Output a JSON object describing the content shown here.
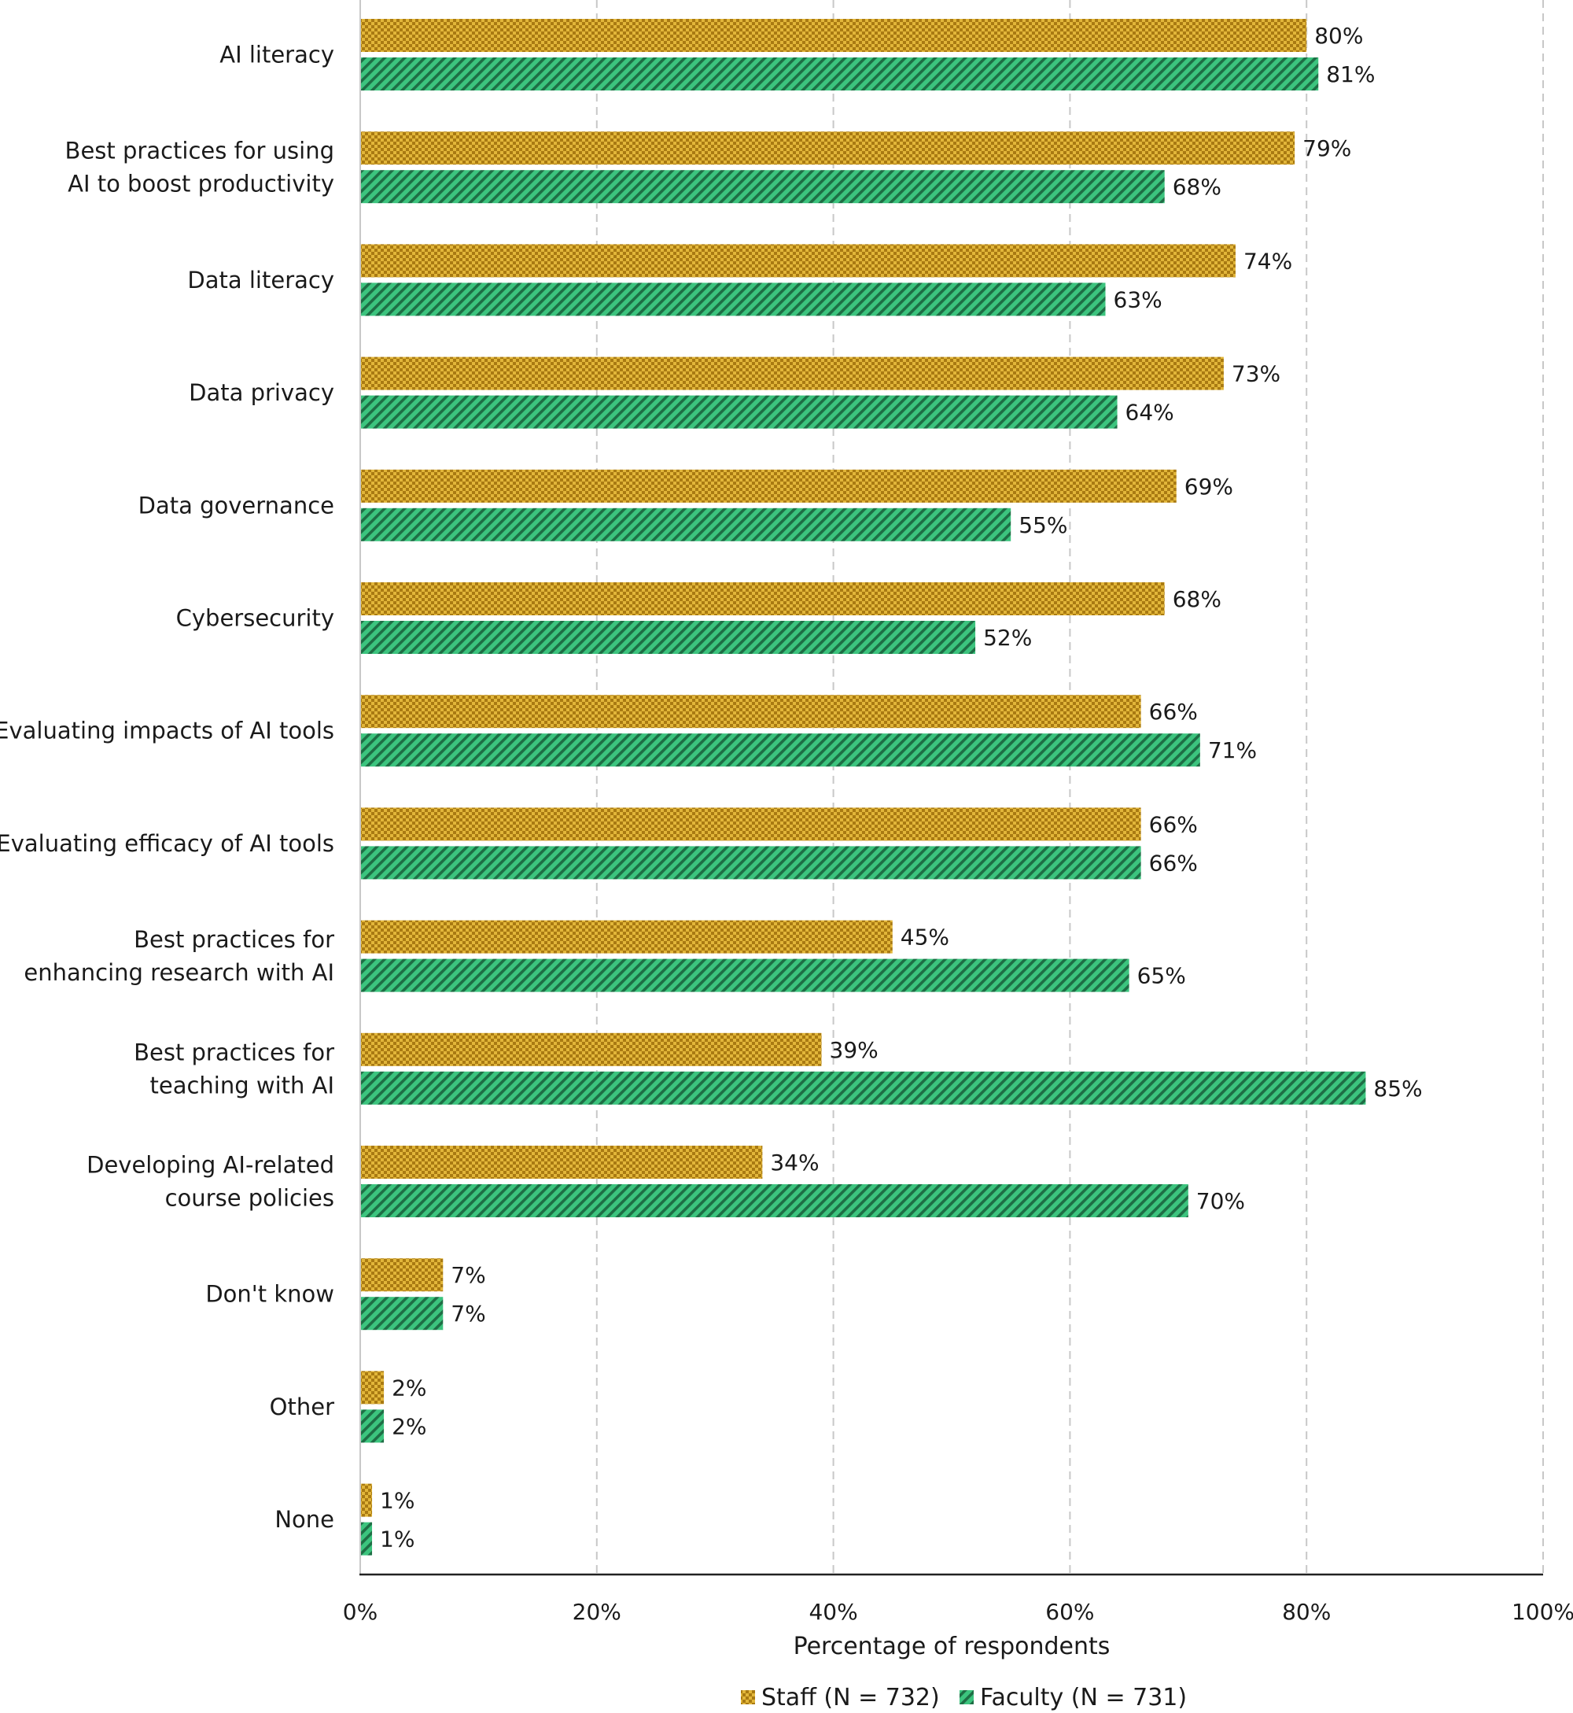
{
  "chart_data": {
    "type": "bar",
    "orientation": "horizontal",
    "categories": [
      [
        "AI literacy"
      ],
      [
        "Best practices for using",
        "AI to boost productivity"
      ],
      [
        "Data literacy"
      ],
      [
        "Data privacy"
      ],
      [
        "Data governance"
      ],
      [
        "Cybersecurity"
      ],
      [
        "Evaluating impacts of AI tools"
      ],
      [
        "Evaluating efficacy of AI tools"
      ],
      [
        "Best practices for",
        "enhancing research with AI"
      ],
      [
        "Best practices for",
        "teaching with AI"
      ],
      [
        "Developing AI-related",
        "course policies"
      ],
      [
        "Don't know"
      ],
      [
        "Other"
      ],
      [
        "None"
      ]
    ],
    "series": [
      {
        "name": "Staff (N = 732)",
        "values": [
          80,
          79,
          74,
          73,
          69,
          68,
          66,
          66,
          45,
          39,
          34,
          7,
          2,
          1
        ],
        "color": "#d9a82b",
        "pattern": "checker"
      },
      {
        "name": "Faculty (N = 731)",
        "values": [
          81,
          68,
          63,
          64,
          55,
          52,
          71,
          66,
          65,
          85,
          70,
          7,
          2,
          1
        ],
        "color": "#2fb36f",
        "pattern": "diagonal-hatch"
      }
    ],
    "value_suffix": "%",
    "xlabel": "Percentage of respondents",
    "xlim": [
      0,
      100
    ],
    "xticks": [
      0,
      20,
      40,
      60,
      80,
      100
    ],
    "xtick_labels": [
      "0%",
      "20%",
      "40%",
      "60%",
      "80%",
      "100%"
    ],
    "grid": "vertical dashed",
    "legend_position": "bottom"
  }
}
